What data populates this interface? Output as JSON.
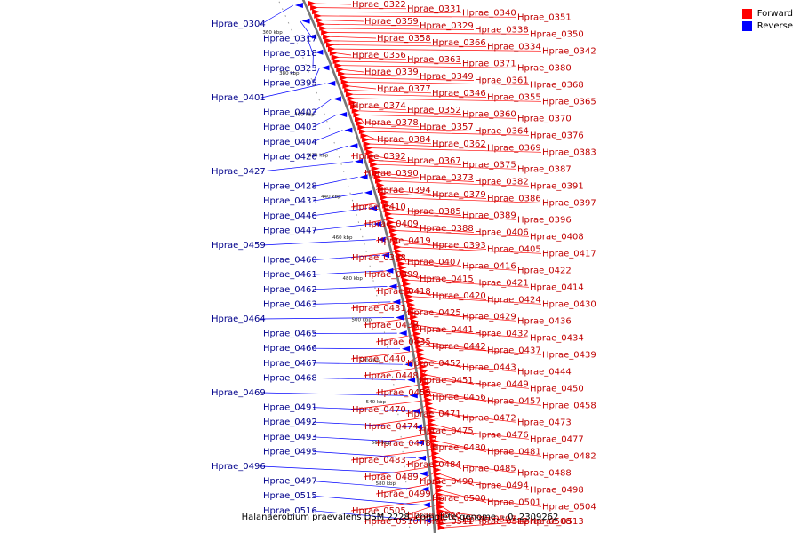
{
  "caption": "Halanaerobium praevalens DSM 2228, complete genome. - 0..2309262",
  "legend": [
    {
      "label": "Forward",
      "color": "#ff0000"
    },
    {
      "label": "Reverse",
      "color": "#0000ff"
    }
  ],
  "colors": {
    "forward": "#ff0000",
    "reverse": "#0000ff",
    "backbone": "#888888"
  },
  "kbp_markers": [
    "360 kbp",
    "380 kbp",
    "400 kbp",
    "420 kbp",
    "440 kbp",
    "460 kbp",
    "480 kbp",
    "500 kbp",
    "520 kbp",
    "540 kbp",
    "560 kbp",
    "580 kbp"
  ],
  "forward_genes": [
    "Hprae_0322",
    "Hprae_0331",
    "Hprae_0340",
    "Hprae_0351",
    "Hprae_0359",
    "Hprae_0329",
    "Hprae_0338",
    "Hprae_0350",
    "Hprae_0358",
    "Hprae_0366",
    "Hprae_0334",
    "Hprae_0342",
    "Hprae_0356",
    "Hprae_0363",
    "Hprae_0371",
    "Hprae_0380",
    "Hprae_0339",
    "Hprae_0349",
    "Hprae_0361",
    "Hprae_0368",
    "Hprae_0377",
    "Hprae_0346",
    "Hprae_0355",
    "Hprae_0365",
    "Hprae_0374",
    "Hprae_0352",
    "Hprae_0360",
    "Hprae_0370",
    "Hprae_0378",
    "Hprae_0357",
    "Hprae_0364",
    "Hprae_0376",
    "Hprae_0384",
    "Hprae_0362",
    "Hprae_0369",
    "Hprae_0383",
    "Hprae_0392",
    "Hprae_0367",
    "Hprae_0375",
    "Hprae_0387",
    "Hprae_0390",
    "Hprae_0373",
    "Hprae_0382",
    "Hprae_0391",
    "Hprae_0394",
    "Hprae_0379",
    "Hprae_0386",
    "Hprae_0397",
    "Hprae_0410",
    "Hprae_0385",
    "Hprae_0389",
    "Hprae_0396",
    "Hprae_0409",
    "Hprae_0388",
    "Hprae_0406",
    "Hprae_0408",
    "Hprae_0419",
    "Hprae_0393",
    "Hprae_0405",
    "Hprae_0417",
    "Hprae_0398",
    "Hprae_0407",
    "Hprae_0416",
    "Hprae_0422",
    "Hprae_0399",
    "Hprae_0415",
    "Hprae_0421",
    "Hprae_0414",
    "Hprae_0418",
    "Hprae_0420",
    "Hprae_0424",
    "Hprae_0430",
    "Hprae_0431",
    "Hprae_0425",
    "Hprae_0429",
    "Hprae_0436",
    "Hprae_0438",
    "Hprae_0441",
    "Hprae_0432",
    "Hprae_0434",
    "Hprae_0435",
    "Hprae_0442",
    "Hprae_0437",
    "Hprae_0439",
    "Hprae_0440",
    "Hprae_0452",
    "Hprae_0443",
    "Hprae_0444",
    "Hprae_0448",
    "Hprae_0451",
    "Hprae_0449",
    "Hprae_0450",
    "Hprae_0455",
    "Hprae_0456",
    "Hprae_0457",
    "Hprae_0458",
    "Hprae_0470",
    "Hprae_0471",
    "Hprae_0472",
    "Hprae_0473",
    "Hprae_0474",
    "Hprae_0475",
    "Hprae_0476",
    "Hprae_0477",
    "Hprae_0478",
    "Hprae_0480",
    "Hprae_0481",
    "Hprae_0482",
    "Hprae_0483",
    "Hprae_0484",
    "Hprae_0485",
    "Hprae_0488",
    "Hprae_0489",
    "Hprae_0490",
    "Hprae_0494",
    "Hprae_0498",
    "Hprae_0499",
    "Hprae_0500",
    "Hprae_0501",
    "Hprae_0504",
    "Hprae_0505",
    "Hprae_0506",
    "Hprae_0507",
    "Hprae_0508",
    "Hprae_0510",
    "Hprae_0511",
    "Hprae_0512",
    "Hprae_0513"
  ],
  "reverse_genes": [
    "Hprae_0304",
    "Hprae_0317",
    "Hprae_0318",
    "Hprae_0323",
    "Hprae_0395",
    "Hprae_0401",
    "Hprae_0402",
    "Hprae_0403",
    "Hprae_0404",
    "Hprae_0426",
    "Hprae_0427",
    "Hprae_0428",
    "Hprae_0433",
    "Hprae_0446",
    "Hprae_0447",
    "Hprae_0459",
    "Hprae_0460",
    "Hprae_0461",
    "Hprae_0462",
    "Hprae_0463",
    "Hprae_0464",
    "Hprae_0465",
    "Hprae_0466",
    "Hprae_0467",
    "Hprae_0468",
    "Hprae_0469",
    "Hprae_0491",
    "Hprae_0492",
    "Hprae_0493",
    "Hprae_0495",
    "Hprae_0496",
    "Hprae_0497",
    "Hprae_0515",
    "Hprae_0516"
  ]
}
